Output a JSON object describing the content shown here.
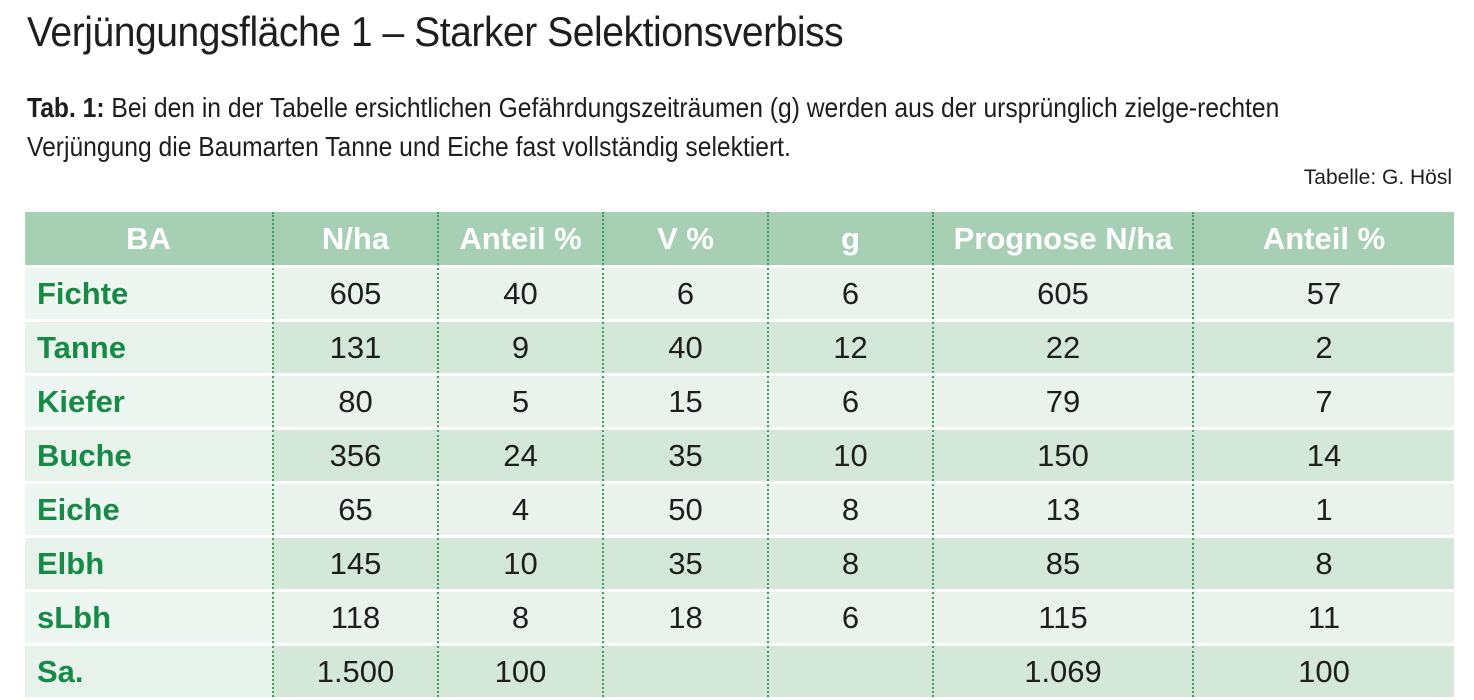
{
  "title": "Verjüngungsfläche 1 – Starker Selektionsverbiss",
  "caption": {
    "label": "Tab. 1:",
    "text": " Bei den in der Tabelle ersichtlichen Gefährdungszeiträumen (g) werden aus der ursprünglich zielge-rechten Verjüngung die Baumarten Tanne und Eiche fast vollständig selektiert."
  },
  "source": "Tabelle: G. Hösl",
  "colors": {
    "header_bg": "#a7cfb4",
    "species_text": "#178a48",
    "row_light": "#e9f3ec",
    "row_dark": "#d3e8d9"
  },
  "table": {
    "headers": [
      "BA",
      "N/ha",
      "Anteil %",
      "V %",
      "g",
      "Prognose N/ha",
      "Anteil %"
    ],
    "rows": [
      [
        "Fichte",
        "605",
        "40",
        "6",
        "6",
        "605",
        "57"
      ],
      [
        "Tanne",
        "131",
        "9",
        "40",
        "12",
        "22",
        "2"
      ],
      [
        "Kiefer",
        "80",
        "5",
        "15",
        "6",
        "79",
        "7"
      ],
      [
        "Buche",
        "356",
        "24",
        "35",
        "10",
        "150",
        "14"
      ],
      [
        "Eiche",
        "65",
        "4",
        "50",
        "8",
        "13",
        "1"
      ],
      [
        "Elbh",
        "145",
        "10",
        "35",
        "8",
        "85",
        "8"
      ],
      [
        "sLbh",
        "118",
        "8",
        "18",
        "6",
        "115",
        "11"
      ],
      [
        "Sa.",
        "1.500",
        "100",
        "",
        "",
        "1.069",
        "100"
      ]
    ]
  }
}
